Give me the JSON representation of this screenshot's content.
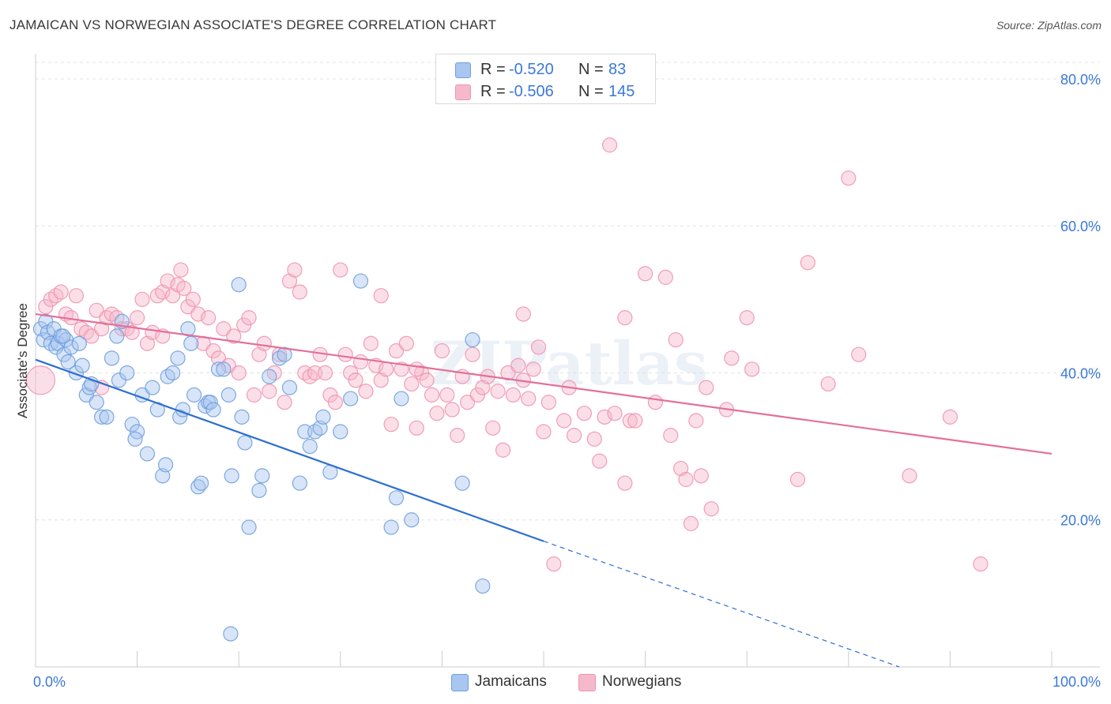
{
  "header": {
    "title": "JAMAICAN VS NORWEGIAN ASSOCIATE'S DEGREE CORRELATION CHART",
    "source": "Source: ZipAtlas.com"
  },
  "legend": {
    "rows": [
      {
        "r_label": "R =",
        "r_value": "-0.520",
        "n_label": "N =",
        "n_value": "83"
      },
      {
        "r_label": "R =",
        "r_value": "-0.506",
        "n_label": "N =",
        "n_value": "145"
      }
    ]
  },
  "bottom_legend": {
    "jamaicans": "Jamaicans",
    "norwegians": "Norwegians"
  },
  "colors": {
    "jamaicans_fill": "#a9c6f0",
    "jamaicans_stroke": "#6f9fde",
    "jamaicans_line": "#2d6fd1",
    "norwegians_fill": "#f6b9cb",
    "norwegians_stroke": "#ef93ae",
    "norwegians_line": "#e2709a",
    "axis_text": "#3c78d8",
    "grid": "#e3e3e3"
  },
  "chart_data": {
    "type": "scatter",
    "title": "JAMAICAN VS NORWEGIAN ASSOCIATE'S DEGREE CORRELATION CHART",
    "xlabel": "",
    "ylabel": "Associate's Degree",
    "x_range": [
      0,
      100
    ],
    "y_range": [
      0,
      83
    ],
    "x_tick_labels": [
      "0.0%",
      "100.0%"
    ],
    "y_ticks": [
      20,
      40,
      60,
      80
    ],
    "y_tick_labels": [
      "20.0%",
      "40.0%",
      "60.0%",
      "80.0%"
    ],
    "grid": true,
    "legend_position": "top-center",
    "watermark": "ZIPatlas",
    "series": [
      {
        "name": "Jamaicans",
        "r": -0.52,
        "n": 83,
        "trend": {
          "x0": 0,
          "y0": 41.8,
          "x1": 50,
          "y1": 17.1,
          "dashed_to_x": 85,
          "dashed_to_y": 0
        },
        "points": [
          [
            0.5,
            46
          ],
          [
            0.8,
            44.5
          ],
          [
            1,
            47
          ],
          [
            1.2,
            45.5
          ],
          [
            1.5,
            44
          ],
          [
            1.8,
            46
          ],
          [
            2,
            43.5
          ],
          [
            2.2,
            44
          ],
          [
            2.5,
            45
          ],
          [
            2.8,
            42.5
          ],
          [
            3,
            44.5
          ],
          [
            3.2,
            41.5
          ],
          [
            3.5,
            43.5
          ],
          [
            4,
            40
          ],
          [
            4.3,
            44
          ],
          [
            4.6,
            41
          ],
          [
            5,
            37
          ],
          [
            5.3,
            38
          ],
          [
            6,
            36
          ],
          [
            6.5,
            34
          ],
          [
            7,
            34
          ],
          [
            7.5,
            42
          ],
          [
            8,
            45
          ],
          [
            8.2,
            39
          ],
          [
            8.5,
            47
          ],
          [
            9,
            40
          ],
          [
            9.5,
            33
          ],
          [
            10,
            32
          ],
          [
            10.5,
            37
          ],
          [
            11,
            29
          ],
          [
            11.5,
            38
          ],
          [
            12,
            35
          ],
          [
            12.5,
            26
          ],
          [
            12.8,
            27.5
          ],
          [
            13,
            39.5
          ],
          [
            13.5,
            40
          ],
          [
            14,
            42
          ],
          [
            14.2,
            34
          ],
          [
            14.5,
            35
          ],
          [
            15,
            46
          ],
          [
            15.3,
            44
          ],
          [
            15.6,
            37
          ],
          [
            16,
            24.5
          ],
          [
            16.3,
            25
          ],
          [
            16.7,
            35.5
          ],
          [
            17,
            36
          ],
          [
            17.2,
            36
          ],
          [
            17.5,
            35
          ],
          [
            18,
            40.5
          ],
          [
            18.5,
            40.5
          ],
          [
            19,
            37
          ],
          [
            19.3,
            26
          ],
          [
            20,
            52
          ],
          [
            20.3,
            34
          ],
          [
            20.6,
            30.5
          ],
          [
            21,
            19
          ],
          [
            22,
            24
          ],
          [
            22.3,
            26
          ],
          [
            23,
            39.5
          ],
          [
            24,
            42
          ],
          [
            24.5,
            42.5
          ],
          [
            25,
            38
          ],
          [
            26,
            25
          ],
          [
            26.5,
            32
          ],
          [
            27,
            30
          ],
          [
            27.5,
            32
          ],
          [
            28,
            32.5
          ],
          [
            28.3,
            34
          ],
          [
            29,
            26.5
          ],
          [
            30,
            32
          ],
          [
            31,
            36.5
          ],
          [
            32,
            52.5
          ],
          [
            35,
            19
          ],
          [
            35.5,
            23
          ],
          [
            36,
            36.5
          ],
          [
            37,
            20
          ],
          [
            42,
            25
          ],
          [
            43,
            44.5
          ],
          [
            44,
            11
          ],
          [
            19.2,
            4.5
          ],
          [
            5.5,
            38.5
          ],
          [
            2.7,
            45
          ],
          [
            9.8,
            31
          ]
        ]
      },
      {
        "name": "Norwegians",
        "r": -0.506,
        "n": 145,
        "trend": {
          "x0": 0,
          "y0": 48,
          "x1": 100,
          "y1": 29
        },
        "points": [
          [
            0.5,
            39
          ],
          [
            1,
            49
          ],
          [
            1.5,
            50
          ],
          [
            2,
            50.5
          ],
          [
            2.5,
            51
          ],
          [
            3,
            48
          ],
          [
            3.5,
            47.5
          ],
          [
            4,
            50.5
          ],
          [
            4.5,
            46
          ],
          [
            5,
            45.5
          ],
          [
            5.5,
            45
          ],
          [
            6,
            48.5
          ],
          [
            6.5,
            46
          ],
          [
            7,
            47.5
          ],
          [
            7.5,
            48
          ],
          [
            8,
            47.5
          ],
          [
            8.5,
            46
          ],
          [
            9,
            46
          ],
          [
            9.5,
            45.5
          ],
          [
            10,
            47.5
          ],
          [
            10.5,
            50
          ],
          [
            11,
            44
          ],
          [
            11.5,
            45.5
          ],
          [
            12,
            50.5
          ],
          [
            12.5,
            51
          ],
          [
            13,
            52.5
          ],
          [
            13.5,
            50.5
          ],
          [
            14,
            52
          ],
          [
            14.3,
            54
          ],
          [
            14.6,
            51.5
          ],
          [
            15,
            49
          ],
          [
            15.5,
            50
          ],
          [
            16,
            48
          ],
          [
            16.5,
            44
          ],
          [
            17,
            47.5
          ],
          [
            17.5,
            43
          ],
          [
            18,
            42
          ],
          [
            18.5,
            46
          ],
          [
            19,
            41
          ],
          [
            19.5,
            45
          ],
          [
            20,
            40
          ],
          [
            20.5,
            46.5
          ],
          [
            21,
            47.5
          ],
          [
            21.5,
            37
          ],
          [
            22,
            42.5
          ],
          [
            22.5,
            44
          ],
          [
            23,
            37.5
          ],
          [
            23.5,
            40
          ],
          [
            24,
            42.5
          ],
          [
            24.5,
            36
          ],
          [
            25,
            52.5
          ],
          [
            25.5,
            54
          ],
          [
            26,
            51
          ],
          [
            26.5,
            40
          ],
          [
            27,
            39.5
          ],
          [
            27.5,
            40
          ],
          [
            28,
            42.5
          ],
          [
            28.5,
            40
          ],
          [
            29,
            37
          ],
          [
            29.5,
            36
          ],
          [
            30,
            54
          ],
          [
            30.5,
            42.5
          ],
          [
            31,
            40
          ],
          [
            31.5,
            39
          ],
          [
            32,
            41.5
          ],
          [
            32.5,
            37.5
          ],
          [
            33,
            44
          ],
          [
            33.5,
            41
          ],
          [
            34,
            39
          ],
          [
            34.5,
            40.5
          ],
          [
            35,
            33
          ],
          [
            35.5,
            43
          ],
          [
            36,
            40.5
          ],
          [
            36.5,
            44
          ],
          [
            37,
            38.5
          ],
          [
            37.5,
            32.5
          ],
          [
            38,
            40
          ],
          [
            38.5,
            39
          ],
          [
            39,
            37
          ],
          [
            39.5,
            34.5
          ],
          [
            40,
            43
          ],
          [
            40.5,
            37
          ],
          [
            41,
            35
          ],
          [
            41.5,
            31.5
          ],
          [
            42,
            39.5
          ],
          [
            42.5,
            36
          ],
          [
            43,
            42.5
          ],
          [
            43.5,
            37
          ],
          [
            44,
            38
          ],
          [
            44.5,
            39.5
          ],
          [
            45,
            32.5
          ],
          [
            45.5,
            37.5
          ],
          [
            46,
            29.5
          ],
          [
            46.5,
            40
          ],
          [
            47,
            37
          ],
          [
            47.5,
            41
          ],
          [
            48,
            39
          ],
          [
            48.5,
            36.5
          ],
          [
            49,
            40.5
          ],
          [
            49.5,
            43.5
          ],
          [
            50,
            32
          ],
          [
            50.5,
            36
          ],
          [
            51,
            14
          ],
          [
            52,
            33.5
          ],
          [
            52.5,
            38
          ],
          [
            53,
            31.5
          ],
          [
            54,
            34.5
          ],
          [
            55,
            31
          ],
          [
            55.5,
            28
          ],
          [
            56,
            34
          ],
          [
            56.5,
            71
          ],
          [
            57,
            34.5
          ],
          [
            58,
            25
          ],
          [
            58.5,
            33.5
          ],
          [
            59,
            33.5
          ],
          [
            60,
            53.5
          ],
          [
            61,
            36
          ],
          [
            62,
            53
          ],
          [
            62.5,
            31.5
          ],
          [
            63,
            44.5
          ],
          [
            63.5,
            27
          ],
          [
            64,
            25.5
          ],
          [
            65,
            33.5
          ],
          [
            65.5,
            26
          ],
          [
            66,
            38
          ],
          [
            66.5,
            21.5
          ],
          [
            68,
            35
          ],
          [
            68.5,
            42
          ],
          [
            70,
            47.5
          ],
          [
            70.5,
            40.5
          ],
          [
            75,
            25.5
          ],
          [
            76,
            55
          ],
          [
            78,
            38.5
          ],
          [
            80,
            66.5
          ],
          [
            81,
            42.5
          ],
          [
            86,
            26
          ],
          [
            90,
            34
          ],
          [
            93,
            14
          ],
          [
            64.5,
            19.5
          ],
          [
            48,
            48
          ],
          [
            34,
            50.5
          ],
          [
            37.5,
            40.5
          ],
          [
            58,
            47.5
          ],
          [
            12.5,
            45
          ],
          [
            6.5,
            38
          ]
        ]
      }
    ]
  }
}
